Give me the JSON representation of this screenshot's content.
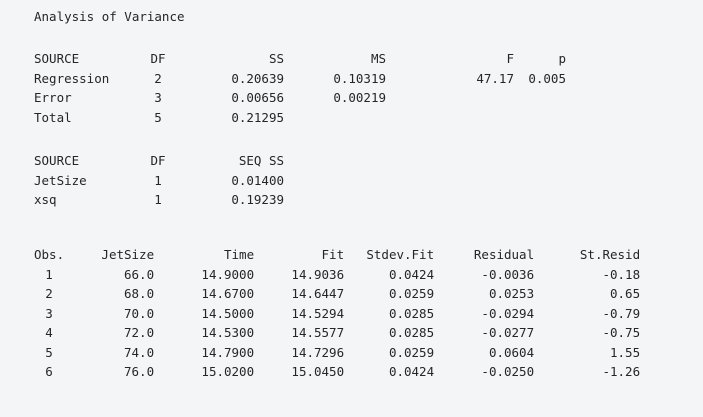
{
  "title": "Analysis of Variance",
  "anova": {
    "headers": [
      "SOURCE",
      "DF",
      "SS",
      "MS",
      "F",
      "p"
    ],
    "rows": [
      [
        "Regression",
        "2",
        "0.20639",
        "0.10319",
        "47.17",
        "0.005"
      ],
      [
        "Error",
        "3",
        "0.00656",
        "0.00219",
        "",
        ""
      ],
      [
        "Total",
        "5",
        "0.21295",
        "",
        "",
        ""
      ]
    ]
  },
  "seq": {
    "headers": [
      "SOURCE",
      "DF",
      "SEQ SS"
    ],
    "rows": [
      [
        "JetSize",
        "1",
        "0.01400"
      ],
      [
        "xsq",
        "1",
        "0.19239"
      ]
    ]
  },
  "obs": {
    "headers": [
      "Obs.",
      "JetSize",
      "Time",
      "Fit",
      "Stdev.Fit",
      "Residual",
      "St.Resid"
    ],
    "rows": [
      [
        "1",
        "66.0",
        "14.9000",
        "14.9036",
        "0.0424",
        "-0.0036",
        "-0.18"
      ],
      [
        "2",
        "68.0",
        "14.6700",
        "14.6447",
        "0.0259",
        "0.0253",
        "0.65"
      ],
      [
        "3",
        "70.0",
        "14.5000",
        "14.5294",
        "0.0285",
        "-0.0294",
        "-0.79"
      ],
      [
        "4",
        "72.0",
        "14.5300",
        "14.5577",
        "0.0285",
        "-0.0277",
        "-0.75"
      ],
      [
        "5",
        "74.0",
        "14.7900",
        "14.7296",
        "0.0259",
        "0.0604",
        "1.55"
      ],
      [
        "6",
        "76.0",
        "15.0200",
        "15.0450",
        "0.0424",
        "-0.0250",
        "-1.26"
      ]
    ]
  }
}
